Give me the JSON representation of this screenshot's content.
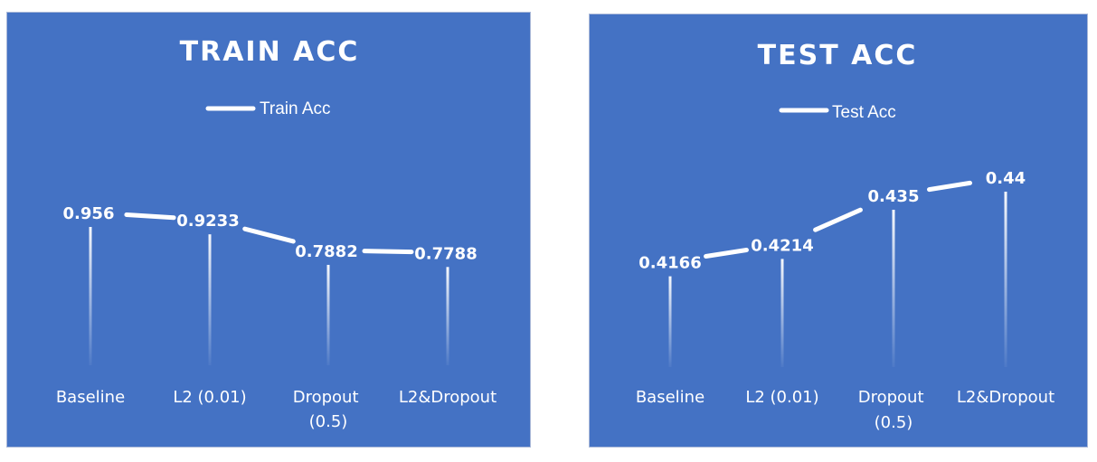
{
  "chart_data": [
    {
      "type": "line",
      "title": "TRAIN ACC",
      "legend_position": "top",
      "categories": [
        "Baseline",
        "L2 (0.01)",
        "Dropout (0.5)",
        "L2&Dropout"
      ],
      "series": [
        {
          "name": "Train Acc",
          "values": [
            0.956,
            0.9233,
            0.7882,
            0.7788
          ],
          "labels": [
            "0.956",
            "0.9233",
            "0.7882",
            "0.7788"
          ]
        }
      ],
      "grid": false,
      "axes_visible": false,
      "drop_lines": true,
      "colors": {
        "background": "#4472c4",
        "line": "#ffffff",
        "text": "#ffffff"
      }
    },
    {
      "type": "line",
      "title": "TEST ACC",
      "legend_position": "top",
      "categories": [
        "Baseline",
        "L2 (0.01)",
        "Dropout (0.5)",
        "L2&Dropout"
      ],
      "series": [
        {
          "name": "Test Acc",
          "values": [
            0.4166,
            0.4214,
            0.435,
            0.44
          ],
          "labels": [
            "0.4166",
            "0.4214",
            "0.435",
            "0.44"
          ]
        }
      ],
      "grid": false,
      "axes_visible": false,
      "drop_lines": true,
      "colors": {
        "background": "#4472c4",
        "line": "#ffffff",
        "text": "#ffffff"
      }
    }
  ]
}
